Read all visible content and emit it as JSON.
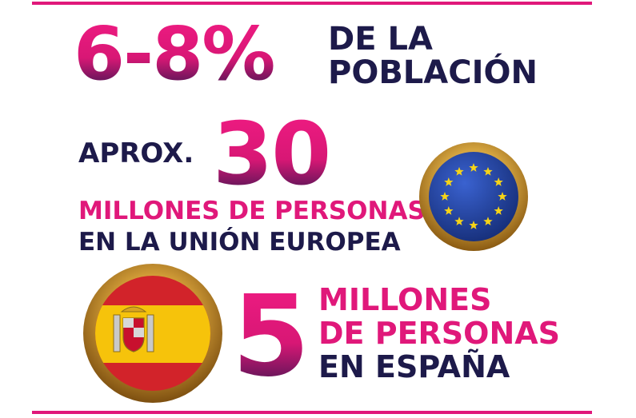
{
  "headline": {
    "percent": "6-8%",
    "line1": "DE LA",
    "line2": "POBLACIÓN"
  },
  "eu": {
    "prefix": "APROX.",
    "number": "30",
    "line1": "MILLONES DE PERSONAS",
    "line2": "EN LA UNIÓN EUROPEA",
    "flag_icon": "eu-flag-icon"
  },
  "spain": {
    "number": "5",
    "line1": "MILLONES",
    "line2": "DE PERSONAS",
    "line3": "EN ESPAÑA",
    "flag_icon": "spain-flag-icon"
  },
  "colors": {
    "pink": "#e0187a",
    "navy": "#1d1a4a",
    "gold": "#d8a53a",
    "eu_blue": "#1f3f9c",
    "spain_red": "#d2232a",
    "spain_yellow": "#f6c30b"
  }
}
